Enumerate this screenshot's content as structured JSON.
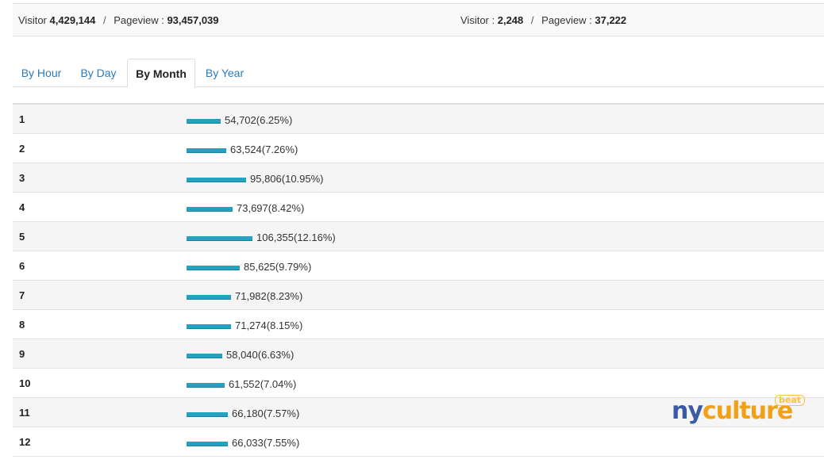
{
  "summary": {
    "total": {
      "visitor_label": "Visitor",
      "visitor_value": "4,429,144",
      "pageview_label": "Pageview :",
      "pageview_value": "93,457,039"
    },
    "today": {
      "visitor_label": "Visitor :",
      "visitor_value": "2,248",
      "pageview_label": "Pageview :",
      "pageview_value": "37,222"
    },
    "separator": "/"
  },
  "tabs": [
    {
      "label": "By Hour",
      "active": false
    },
    {
      "label": "By Day",
      "active": false
    },
    {
      "label": "By Month",
      "active": true
    },
    {
      "label": "By Year",
      "active": false
    }
  ],
  "accent_color": "#23a2c2",
  "link_color": "#2a7ab8",
  "rows": [
    {
      "label": "1",
      "value": 54702,
      "text": "54,702(6.25%)"
    },
    {
      "label": "2",
      "value": 63524,
      "text": "63,524(7.26%)"
    },
    {
      "label": "3",
      "value": 95806,
      "text": "95,806(10.95%)"
    },
    {
      "label": "4",
      "value": 73697,
      "text": "73,697(8.42%)"
    },
    {
      "label": "5",
      "value": 106355,
      "text": "106,355(12.16%)"
    },
    {
      "label": "6",
      "value": 85625,
      "text": "85,625(9.79%)"
    },
    {
      "label": "7",
      "value": 71982,
      "text": "71,982(8.23%)"
    },
    {
      "label": "8",
      "value": 71274,
      "text": "71,274(8.15%)"
    },
    {
      "label": "9",
      "value": 58040,
      "text": "58,040(6.63%)"
    },
    {
      "label": "10",
      "value": 61552,
      "text": "61,552(7.04%)"
    },
    {
      "label": "11",
      "value": 66180,
      "text": "66,180(7.57%)"
    },
    {
      "label": "12",
      "value": 66033,
      "text": "66,033(7.55%)"
    }
  ],
  "logo": {
    "ny": "ny",
    "culture": "culture",
    "badge": "beat"
  }
}
